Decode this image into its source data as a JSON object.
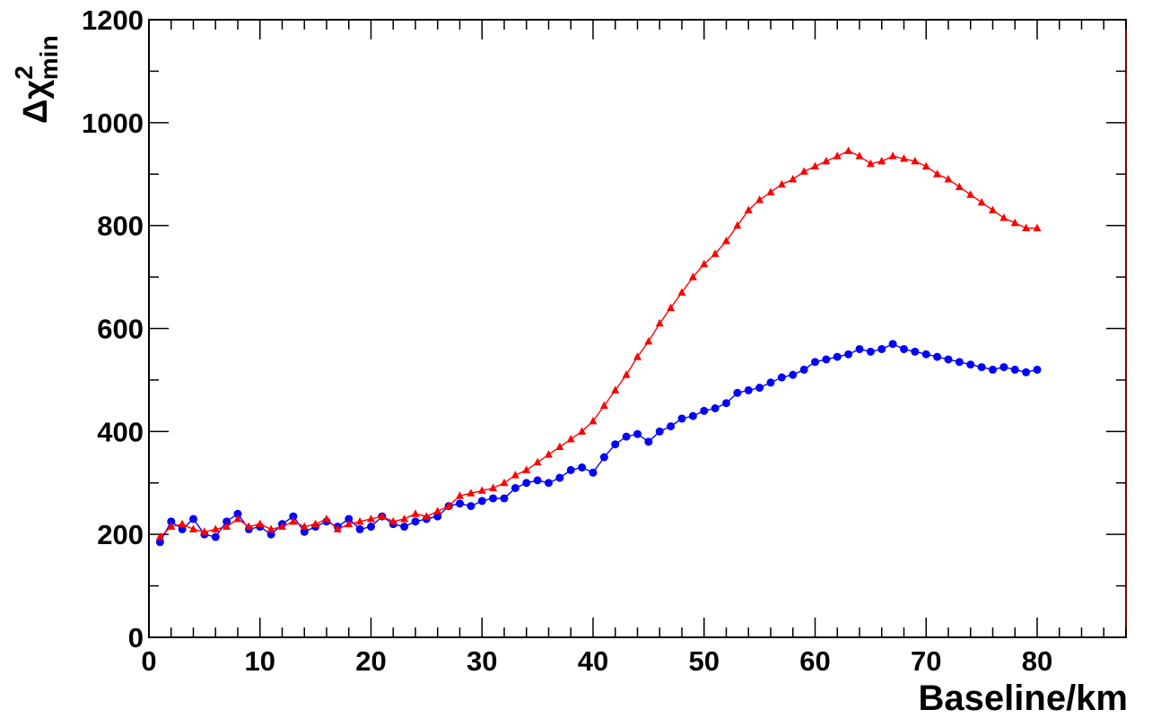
{
  "chart_data": {
    "type": "scatter",
    "title": "",
    "xlabel": "Baseline/km",
    "ylabel": {
      "symbol": "Δχ",
      "superscript": "2",
      "subscript": "min"
    },
    "xlim": [
      0,
      88
    ],
    "ylim": [
      0,
      1200
    ],
    "x_ticks": [
      0,
      10,
      20,
      30,
      40,
      50,
      60,
      70,
      80
    ],
    "y_ticks": [
      0,
      200,
      400,
      600,
      800,
      1000,
      1200
    ],
    "x_tick_labels": [
      "0",
      "10",
      "20",
      "30",
      "40",
      "50",
      "60",
      "70",
      "80"
    ],
    "y_tick_labels": [
      "0",
      "200",
      "400",
      "600",
      "800",
      "1000",
      "1200"
    ],
    "grid": false,
    "legend": "none",
    "series": [
      {
        "color": "#0000ff",
        "marker": "circle",
        "x": [
          1,
          2,
          3,
          4,
          5,
          6,
          7,
          8,
          9,
          10,
          11,
          12,
          13,
          14,
          15,
          16,
          17,
          18,
          19,
          20,
          21,
          22,
          23,
          24,
          25,
          26,
          27,
          28,
          29,
          30,
          31,
          32,
          33,
          34,
          35,
          36,
          37,
          38,
          39,
          40,
          41,
          42,
          43,
          44,
          45,
          46,
          47,
          48,
          49,
          50,
          51,
          52,
          53,
          54,
          55,
          56,
          57,
          58,
          59,
          60,
          61,
          62,
          63,
          64,
          65,
          66,
          67,
          68,
          69,
          70,
          71,
          72,
          73,
          74,
          75,
          76,
          77,
          78,
          79,
          80
        ],
        "y": [
          185,
          225,
          210,
          230,
          200,
          195,
          225,
          240,
          210,
          215,
          200,
          220,
          235,
          205,
          215,
          225,
          215,
          230,
          210,
          215,
          235,
          220,
          215,
          225,
          230,
          235,
          255,
          260,
          255,
          265,
          270,
          270,
          290,
          300,
          305,
          300,
          310,
          325,
          330,
          320,
          350,
          375,
          390,
          395,
          380,
          400,
          410,
          425,
          430,
          440,
          445,
          455,
          475,
          480,
          485,
          495,
          505,
          510,
          520,
          535,
          540,
          545,
          550,
          560,
          555,
          560,
          570,
          560,
          555,
          550,
          545,
          540,
          535,
          530,
          525,
          520,
          525,
          520,
          515,
          520
        ]
      },
      {
        "color": "#ff0000",
        "marker": "triangle",
        "x": [
          1,
          2,
          3,
          4,
          5,
          6,
          7,
          8,
          9,
          10,
          11,
          12,
          13,
          14,
          15,
          16,
          17,
          18,
          19,
          20,
          21,
          22,
          23,
          24,
          25,
          26,
          27,
          28,
          29,
          30,
          31,
          32,
          33,
          34,
          35,
          36,
          37,
          38,
          39,
          40,
          41,
          42,
          43,
          44,
          45,
          46,
          47,
          48,
          49,
          50,
          51,
          52,
          53,
          54,
          55,
          56,
          57,
          58,
          59,
          60,
          61,
          62,
          63,
          64,
          65,
          66,
          67,
          68,
          69,
          70,
          71,
          72,
          73,
          74,
          75,
          76,
          77,
          78,
          79,
          80
        ],
        "y": [
          195,
          215,
          220,
          210,
          205,
          210,
          215,
          230,
          215,
          220,
          210,
          215,
          225,
          215,
          220,
          230,
          210,
          220,
          225,
          230,
          235,
          225,
          230,
          240,
          235,
          245,
          255,
          275,
          280,
          285,
          290,
          300,
          315,
          325,
          340,
          355,
          370,
          385,
          400,
          420,
          450,
          480,
          510,
          545,
          575,
          610,
          640,
          670,
          700,
          725,
          745,
          770,
          800,
          830,
          850,
          865,
          880,
          890,
          905,
          915,
          925,
          935,
          945,
          935,
          920,
          925,
          935,
          930,
          925,
          915,
          900,
          890,
          875,
          860,
          845,
          830,
          815,
          805,
          795,
          795
        ]
      }
    ]
  }
}
